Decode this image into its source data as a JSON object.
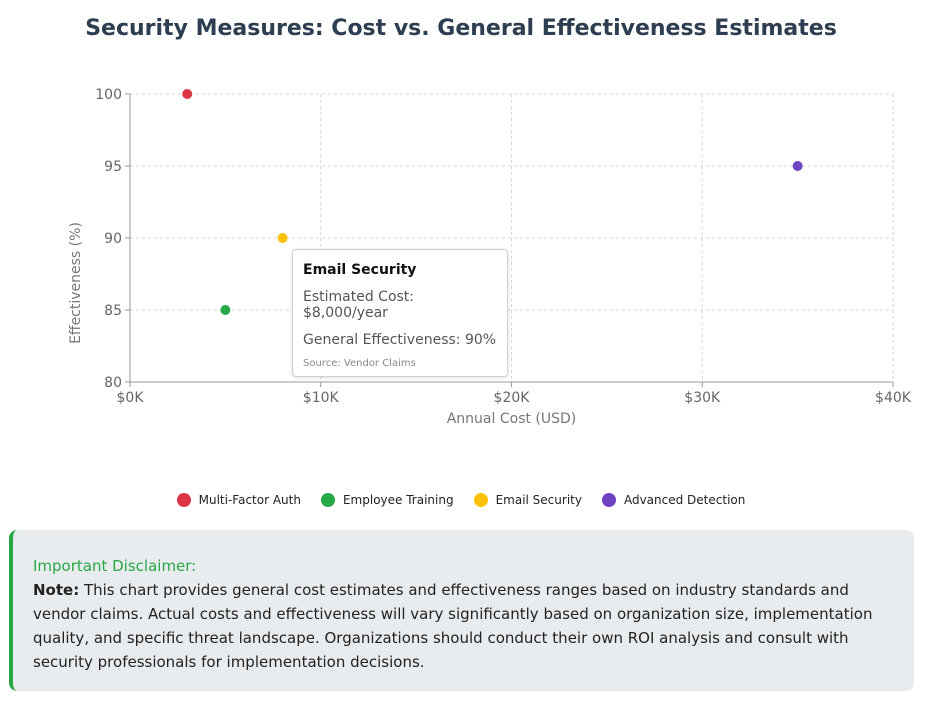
{
  "page": {
    "title": "Security Measures: Cost vs. General Effectiveness Estimates"
  },
  "chart_data": {
    "type": "scatter",
    "title": "Security Measures: Cost vs. General Effectiveness Estimates",
    "xlabel": "Annual Cost (USD)",
    "ylabel": "Effectiveness (%)",
    "xlim": [
      0,
      40000
    ],
    "ylim": [
      80,
      100
    ],
    "x_ticks": [
      0,
      10000,
      20000,
      30000,
      40000
    ],
    "x_tick_labels": [
      "$0K",
      "$10K",
      "$20K",
      "$30K",
      "$40K"
    ],
    "y_ticks": [
      80,
      85,
      90,
      95,
      100
    ],
    "y_tick_labels": [
      "80",
      "85",
      "90",
      "95",
      "100"
    ],
    "grid": true,
    "legend_position": "bottom",
    "series": [
      {
        "name": "Multi-Factor Auth",
        "color": "#dc3545",
        "points": [
          {
            "x": 3000,
            "y": 100
          }
        ]
      },
      {
        "name": "Employee Training",
        "color": "#28a745",
        "points": [
          {
            "x": 5000,
            "y": 85
          }
        ]
      },
      {
        "name": "Email Security",
        "color": "#ffc107",
        "points": [
          {
            "x": 8000,
            "y": 90
          }
        ]
      },
      {
        "name": "Advanced Detection",
        "color": "#6f42c1",
        "points": [
          {
            "x": 35000,
            "y": 95
          }
        ]
      }
    ]
  },
  "tooltip": {
    "title": "Email Security",
    "cost_line": "Estimated Cost: $8,000/year",
    "effectiveness_line": "General Effectiveness: 90%",
    "source_line": "Source: Vendor Claims"
  },
  "disclaimer": {
    "heading": "Important Disclaimer:",
    "note_label": "Note:",
    "text": " This chart provides general cost estimates and effectiveness ranges based on industry standards and vendor claims. Actual costs and effectiveness will vary significantly based on organization size, implementation quality, and specific threat landscape. Organizations should conduct their own ROI analysis and consult with security professionals for implementation decisions."
  }
}
